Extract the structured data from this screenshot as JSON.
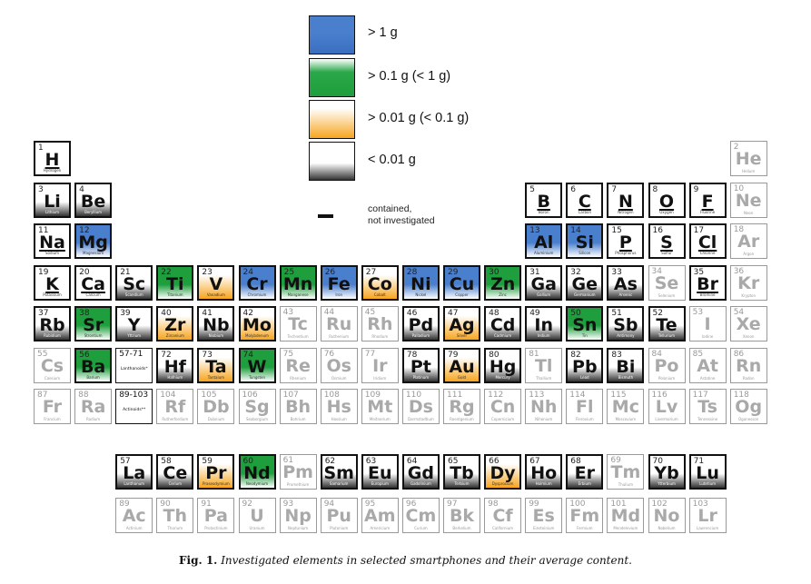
{
  "legend": {
    "items": [
      {
        "label": "> 1 g",
        "level": "blue"
      },
      {
        "label": "> 0.1 g  (< 1 g)",
        "level": "green"
      },
      {
        "label": "> 0.01 g (< 0.1 g)",
        "level": "orange"
      },
      {
        "label": "< 0.01 g",
        "level": "black"
      }
    ],
    "not_investigated_line1": "contained,",
    "not_investigated_line2": "not investigated"
  },
  "colors": {
    "blue": "#4a7fce",
    "green": "#1e9e3c",
    "orange": "#f7a51f",
    "black": "#333333"
  },
  "placeholders": [
    {
      "row": 6,
      "col": 3,
      "num": "57-71",
      "label": "Lanthanoids*"
    },
    {
      "row": 7,
      "col": 3,
      "num": "89-103",
      "label": "Actinoids**"
    }
  ],
  "elements": [
    {
      "n": "1",
      "s": "H",
      "name": "Hydrogen",
      "row": 1,
      "col": 1,
      "c": "white",
      "ul": true
    },
    {
      "n": "2",
      "s": "He",
      "name": "Helium",
      "row": 1,
      "col": 18,
      "c": "ni"
    },
    {
      "n": "3",
      "s": "Li",
      "name": "Lithium",
      "row": 2,
      "col": 1,
      "c": "black"
    },
    {
      "n": "4",
      "s": "Be",
      "name": "Beryllium",
      "row": 2,
      "col": 2,
      "c": "black"
    },
    {
      "n": "5",
      "s": "B",
      "name": "Boron",
      "row": 2,
      "col": 13,
      "c": "white",
      "ul": true
    },
    {
      "n": "6",
      "s": "C",
      "name": "Carbon",
      "row": 2,
      "col": 14,
      "c": "white",
      "ul": true
    },
    {
      "n": "7",
      "s": "N",
      "name": "Nitrogen",
      "row": 2,
      "col": 15,
      "c": "white",
      "ul": true
    },
    {
      "n": "8",
      "s": "O",
      "name": "Oxygen",
      "row": 2,
      "col": 16,
      "c": "white",
      "ul": true
    },
    {
      "n": "9",
      "s": "F",
      "name": "Fluorine",
      "row": 2,
      "col": 17,
      "c": "white",
      "ul": true
    },
    {
      "n": "10",
      "s": "Ne",
      "name": "Neon",
      "row": 2,
      "col": 18,
      "c": "ni"
    },
    {
      "n": "11",
      "s": "Na",
      "name": "Sodium",
      "row": 3,
      "col": 1,
      "c": "white",
      "ul": true
    },
    {
      "n": "12",
      "s": "Mg",
      "name": "Magnesium",
      "row": 3,
      "col": 2,
      "c": "blue"
    },
    {
      "n": "13",
      "s": "Al",
      "name": "Aluminium",
      "row": 3,
      "col": 13,
      "c": "blue"
    },
    {
      "n": "14",
      "s": "Si",
      "name": "Silicon",
      "row": 3,
      "col": 14,
      "c": "blue"
    },
    {
      "n": "15",
      "s": "P",
      "name": "Phosphorus",
      "row": 3,
      "col": 15,
      "c": "white",
      "ul": true
    },
    {
      "n": "16",
      "s": "S",
      "name": "Sulfur",
      "row": 3,
      "col": 16,
      "c": "white",
      "ul": true
    },
    {
      "n": "17",
      "s": "Cl",
      "name": "Chlorine",
      "row": 3,
      "col": 17,
      "c": "white",
      "ul": true
    },
    {
      "n": "18",
      "s": "Ar",
      "name": "Argon",
      "row": 3,
      "col": 18,
      "c": "ni"
    },
    {
      "n": "19",
      "s": "K",
      "name": "Potassium",
      "row": 4,
      "col": 1,
      "c": "white",
      "ul": true
    },
    {
      "n": "20",
      "s": "Ca",
      "name": "Calcium",
      "row": 4,
      "col": 2,
      "c": "white",
      "ul": true
    },
    {
      "n": "21",
      "s": "Sc",
      "name": "Scandium",
      "row": 4,
      "col": 3,
      "c": "black"
    },
    {
      "n": "22",
      "s": "Ti",
      "name": "Titanium",
      "row": 4,
      "col": 4,
      "c": "green"
    },
    {
      "n": "23",
      "s": "V",
      "name": "Vanadium",
      "row": 4,
      "col": 5,
      "c": "orange"
    },
    {
      "n": "24",
      "s": "Cr",
      "name": "Chromium",
      "row": 4,
      "col": 6,
      "c": "blue"
    },
    {
      "n": "25",
      "s": "Mn",
      "name": "Manganese",
      "row": 4,
      "col": 7,
      "c": "green"
    },
    {
      "n": "26",
      "s": "Fe",
      "name": "Iron",
      "row": 4,
      "col": 8,
      "c": "blue"
    },
    {
      "n": "27",
      "s": "Co",
      "name": "Cobalt",
      "row": 4,
      "col": 9,
      "c": "orange"
    },
    {
      "n": "28",
      "s": "Ni",
      "name": "Nickel",
      "row": 4,
      "col": 10,
      "c": "blue"
    },
    {
      "n": "29",
      "s": "Cu",
      "name": "Copper",
      "row": 4,
      "col": 11,
      "c": "blue"
    },
    {
      "n": "30",
      "s": "Zn",
      "name": "Zinc",
      "row": 4,
      "col": 12,
      "c": "green"
    },
    {
      "n": "31",
      "s": "Ga",
      "name": "Gallium",
      "row": 4,
      "col": 13,
      "c": "black"
    },
    {
      "n": "32",
      "s": "Ge",
      "name": "Germanium",
      "row": 4,
      "col": 14,
      "c": "black"
    },
    {
      "n": "33",
      "s": "As",
      "name": "Arsenic",
      "row": 4,
      "col": 15,
      "c": "black"
    },
    {
      "n": "34",
      "s": "Se",
      "name": "Selenium",
      "row": 4,
      "col": 16,
      "c": "ni"
    },
    {
      "n": "35",
      "s": "Br",
      "name": "Bromine",
      "row": 4,
      "col": 17,
      "c": "white",
      "ul": true
    },
    {
      "n": "36",
      "s": "Kr",
      "name": "Krypton",
      "row": 4,
      "col": 18,
      "c": "ni"
    },
    {
      "n": "37",
      "s": "Rb",
      "name": "Rubidium",
      "row": 5,
      "col": 1,
      "c": "black"
    },
    {
      "n": "38",
      "s": "Sr",
      "name": "Strontium",
      "row": 5,
      "col": 2,
      "c": "green"
    },
    {
      "n": "39",
      "s": "Y",
      "name": "Yttrium",
      "row": 5,
      "col": 3,
      "c": "black"
    },
    {
      "n": "40",
      "s": "Zr",
      "name": "Zirconium",
      "row": 5,
      "col": 4,
      "c": "orange"
    },
    {
      "n": "41",
      "s": "Nb",
      "name": "Niobium",
      "row": 5,
      "col": 5,
      "c": "black"
    },
    {
      "n": "42",
      "s": "Mo",
      "name": "Molybdenum",
      "row": 5,
      "col": 6,
      "c": "orange"
    },
    {
      "n": "43",
      "s": "Tc",
      "name": "Technetium",
      "row": 5,
      "col": 7,
      "c": "ni"
    },
    {
      "n": "44",
      "s": "Ru",
      "name": "Ruthenium",
      "row": 5,
      "col": 8,
      "c": "ni"
    },
    {
      "n": "45",
      "s": "Rh",
      "name": "Rhodium",
      "row": 5,
      "col": 9,
      "c": "ni"
    },
    {
      "n": "46",
      "s": "Pd",
      "name": "Palladium",
      "row": 5,
      "col": 10,
      "c": "black"
    },
    {
      "n": "47",
      "s": "Ag",
      "name": "Silver",
      "row": 5,
      "col": 11,
      "c": "orange"
    },
    {
      "n": "48",
      "s": "Cd",
      "name": "Cadmium",
      "row": 5,
      "col": 12,
      "c": "black"
    },
    {
      "n": "49",
      "s": "In",
      "name": "Indium",
      "row": 5,
      "col": 13,
      "c": "black"
    },
    {
      "n": "50",
      "s": "Sn",
      "name": "Tin",
      "row": 5,
      "col": 14,
      "c": "green"
    },
    {
      "n": "51",
      "s": "Sb",
      "name": "Antimony",
      "row": 5,
      "col": 15,
      "c": "black"
    },
    {
      "n": "52",
      "s": "Te",
      "name": "Tellurium",
      "row": 5,
      "col": 16,
      "c": "black"
    },
    {
      "n": "53",
      "s": "I",
      "name": "Iodine",
      "row": 5,
      "col": 17,
      "c": "ni"
    },
    {
      "n": "54",
      "s": "Xe",
      "name": "Xenon",
      "row": 5,
      "col": 18,
      "c": "ni"
    },
    {
      "n": "55",
      "s": "Cs",
      "name": "Caesium",
      "row": 6,
      "col": 1,
      "c": "ni"
    },
    {
      "n": "56",
      "s": "Ba",
      "name": "Barium",
      "row": 6,
      "col": 2,
      "c": "green"
    },
    {
      "n": "72",
      "s": "Hf",
      "name": "Hafnium",
      "row": 6,
      "col": 4,
      "c": "black"
    },
    {
      "n": "73",
      "s": "Ta",
      "name": "Tantalum",
      "row": 6,
      "col": 5,
      "c": "orange"
    },
    {
      "n": "74",
      "s": "W",
      "name": "Tungsten",
      "row": 6,
      "col": 6,
      "c": "green"
    },
    {
      "n": "75",
      "s": "Re",
      "name": "Rhenium",
      "row": 6,
      "col": 7,
      "c": "ni"
    },
    {
      "n": "76",
      "s": "Os",
      "name": "Osmium",
      "row": 6,
      "col": 8,
      "c": "ni"
    },
    {
      "n": "77",
      "s": "Ir",
      "name": "Iridium",
      "row": 6,
      "col": 9,
      "c": "ni"
    },
    {
      "n": "78",
      "s": "Pt",
      "name": "Platinum",
      "row": 6,
      "col": 10,
      "c": "black"
    },
    {
      "n": "79",
      "s": "Au",
      "name": "Gold",
      "row": 6,
      "col": 11,
      "c": "orange"
    },
    {
      "n": "80",
      "s": "Hg",
      "name": "Mercury",
      "row": 6,
      "col": 12,
      "c": "black"
    },
    {
      "n": "81",
      "s": "Tl",
      "name": "Thallium",
      "row": 6,
      "col": 13,
      "c": "ni"
    },
    {
      "n": "82",
      "s": "Pb",
      "name": "Lead",
      "row": 6,
      "col": 14,
      "c": "black"
    },
    {
      "n": "83",
      "s": "Bi",
      "name": "Bismuth",
      "row": 6,
      "col": 15,
      "c": "black"
    },
    {
      "n": "84",
      "s": "Po",
      "name": "Polonium",
      "row": 6,
      "col": 16,
      "c": "ni"
    },
    {
      "n": "85",
      "s": "At",
      "name": "Astatine",
      "row": 6,
      "col": 17,
      "c": "ni"
    },
    {
      "n": "86",
      "s": "Rn",
      "name": "Radon",
      "row": 6,
      "col": 18,
      "c": "ni"
    },
    {
      "n": "87",
      "s": "Fr",
      "name": "Francium",
      "row": 7,
      "col": 1,
      "c": "ni"
    },
    {
      "n": "88",
      "s": "Ra",
      "name": "Radium",
      "row": 7,
      "col": 2,
      "c": "ni"
    },
    {
      "n": "104",
      "s": "Rf",
      "name": "Rutherfordium",
      "row": 7,
      "col": 4,
      "c": "ni"
    },
    {
      "n": "105",
      "s": "Db",
      "name": "Dubnium",
      "row": 7,
      "col": 5,
      "c": "ni"
    },
    {
      "n": "106",
      "s": "Sg",
      "name": "Seaborgium",
      "row": 7,
      "col": 6,
      "c": "ni"
    },
    {
      "n": "107",
      "s": "Bh",
      "name": "Bohrium",
      "row": 7,
      "col": 7,
      "c": "ni"
    },
    {
      "n": "108",
      "s": "Hs",
      "name": "Hassium",
      "row": 7,
      "col": 8,
      "c": "ni"
    },
    {
      "n": "109",
      "s": "Mt",
      "name": "Meitnerium",
      "row": 7,
      "col": 9,
      "c": "ni"
    },
    {
      "n": "110",
      "s": "Ds",
      "name": "Darmstadtium",
      "row": 7,
      "col": 10,
      "c": "ni"
    },
    {
      "n": "111",
      "s": "Rg",
      "name": "Roentgenium",
      "row": 7,
      "col": 11,
      "c": "ni"
    },
    {
      "n": "112",
      "s": "Cn",
      "name": "Copernicium",
      "row": 7,
      "col": 12,
      "c": "ni"
    },
    {
      "n": "113",
      "s": "Nh",
      "name": "Nihonium",
      "row": 7,
      "col": 13,
      "c": "ni"
    },
    {
      "n": "114",
      "s": "Fl",
      "name": "Flerovium",
      "row": 7,
      "col": 14,
      "c": "ni"
    },
    {
      "n": "115",
      "s": "Mc",
      "name": "Moscovium",
      "row": 7,
      "col": 15,
      "c": "ni"
    },
    {
      "n": "116",
      "s": "Lv",
      "name": "Livermorium",
      "row": 7,
      "col": 16,
      "c": "ni"
    },
    {
      "n": "117",
      "s": "Ts",
      "name": "Tennessine",
      "row": 7,
      "col": 17,
      "c": "ni"
    },
    {
      "n": "118",
      "s": "Og",
      "name": "Oganesson",
      "row": 7,
      "col": 18,
      "c": "ni"
    },
    {
      "n": "57",
      "s": "La",
      "name": "Lanthanum",
      "row": 9,
      "col": 3,
      "c": "black"
    },
    {
      "n": "58",
      "s": "Ce",
      "name": "Cerium",
      "row": 9,
      "col": 4,
      "c": "black"
    },
    {
      "n": "59",
      "s": "Pr",
      "name": "Praseodymium",
      "row": 9,
      "col": 5,
      "c": "orange"
    },
    {
      "n": "60",
      "s": "Nd",
      "name": "Neodymium",
      "row": 9,
      "col": 6,
      "c": "green"
    },
    {
      "n": "61",
      "s": "Pm",
      "name": "Promethium",
      "row": 9,
      "col": 7,
      "c": "ni"
    },
    {
      "n": "62",
      "s": "Sm",
      "name": "Samarium",
      "row": 9,
      "col": 8,
      "c": "black"
    },
    {
      "n": "63",
      "s": "Eu",
      "name": "Europium",
      "row": 9,
      "col": 9,
      "c": "black"
    },
    {
      "n": "64",
      "s": "Gd",
      "name": "Gadolinium",
      "row": 9,
      "col": 10,
      "c": "black"
    },
    {
      "n": "65",
      "s": "Tb",
      "name": "Terbium",
      "row": 9,
      "col": 11,
      "c": "black"
    },
    {
      "n": "66",
      "s": "Dy",
      "name": "Dysprosium",
      "row": 9,
      "col": 12,
      "c": "orange"
    },
    {
      "n": "67",
      "s": "Ho",
      "name": "Holmium",
      "row": 9,
      "col": 13,
      "c": "black"
    },
    {
      "n": "68",
      "s": "Er",
      "name": "Erbium",
      "row": 9,
      "col": 14,
      "c": "black"
    },
    {
      "n": "69",
      "s": "Tm",
      "name": "Thulium",
      "row": 9,
      "col": 15,
      "c": "ni"
    },
    {
      "n": "70",
      "s": "Yb",
      "name": "Ytterbium",
      "row": 9,
      "col": 16,
      "c": "black"
    },
    {
      "n": "71",
      "s": "Lu",
      "name": "Lutetium",
      "row": 9,
      "col": 17,
      "c": "black"
    },
    {
      "n": "89",
      "s": "Ac",
      "name": "Actinium",
      "row": 10,
      "col": 3,
      "c": "ni"
    },
    {
      "n": "90",
      "s": "Th",
      "name": "Thorium",
      "row": 10,
      "col": 4,
      "c": "ni"
    },
    {
      "n": "91",
      "s": "Pa",
      "name": "Protactinium",
      "row": 10,
      "col": 5,
      "c": "ni"
    },
    {
      "n": "92",
      "s": "U",
      "name": "Uranium",
      "row": 10,
      "col": 6,
      "c": "ni"
    },
    {
      "n": "93",
      "s": "Np",
      "name": "Neptunium",
      "row": 10,
      "col": 7,
      "c": "ni"
    },
    {
      "n": "94",
      "s": "Pu",
      "name": "Plutonium",
      "row": 10,
      "col": 8,
      "c": "ni"
    },
    {
      "n": "95",
      "s": "Am",
      "name": "Americium",
      "row": 10,
      "col": 9,
      "c": "ni"
    },
    {
      "n": "96",
      "s": "Cm",
      "name": "Curium",
      "row": 10,
      "col": 10,
      "c": "ni"
    },
    {
      "n": "97",
      "s": "Bk",
      "name": "Berkelium",
      "row": 10,
      "col": 11,
      "c": "ni"
    },
    {
      "n": "98",
      "s": "Cf",
      "name": "Californium",
      "row": 10,
      "col": 12,
      "c": "ni"
    },
    {
      "n": "99",
      "s": "Es",
      "name": "Einsteinium",
      "row": 10,
      "col": 13,
      "c": "ni"
    },
    {
      "n": "100",
      "s": "Fm",
      "name": "Fermium",
      "row": 10,
      "col": 14,
      "c": "ni"
    },
    {
      "n": "101",
      "s": "Md",
      "name": "Mendelevium",
      "row": 10,
      "col": 15,
      "c": "ni"
    },
    {
      "n": "102",
      "s": "No",
      "name": "Nobelium",
      "row": 10,
      "col": 16,
      "c": "ni"
    },
    {
      "n": "103",
      "s": "Lr",
      "name": "Lawrencium",
      "row": 10,
      "col": 17,
      "c": "ni"
    }
  ],
  "caption": {
    "label": "Fig. 1.",
    "text": "Investigated elements in selected smartphones and their average content."
  }
}
